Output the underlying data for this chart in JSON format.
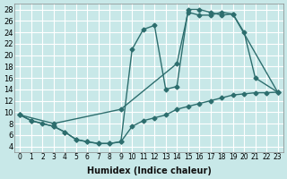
{
  "xlabel": "Humidex (Indice chaleur)",
  "ylabel": "",
  "bg_color": "#c8e8e8",
  "grid_color": "#ffffff",
  "line_color": "#2d6e6e",
  "marker": "D",
  "markersize": 2.5,
  "linewidth": 1.0,
  "xlim": [
    -0.5,
    23.5
  ],
  "ylim": [
    3,
    29
  ],
  "xticks": [
    0,
    1,
    2,
    3,
    4,
    5,
    6,
    7,
    8,
    9,
    10,
    11,
    12,
    13,
    14,
    15,
    16,
    17,
    18,
    19,
    20,
    21,
    22,
    23
  ],
  "yticks": [
    4,
    6,
    8,
    10,
    12,
    14,
    16,
    18,
    20,
    22,
    24,
    26,
    28
  ],
  "line1_x": [
    0,
    1,
    3,
    4,
    5,
    6,
    7,
    8,
    9,
    10,
    11,
    12,
    13,
    14,
    15,
    16,
    17,
    18,
    19,
    23
  ],
  "line1_y": [
    9.5,
    8.5,
    7.5,
    6.5,
    5.2,
    4.8,
    4.5,
    4.5,
    4.8,
    21.0,
    24.5,
    25.2,
    14.0,
    14.5,
    28.0,
    28.0,
    27.5,
    27.0,
    27.2,
    13.5
  ],
  "line2_x": [
    0,
    3,
    9,
    14,
    15,
    16,
    17,
    18,
    19,
    20,
    21,
    23
  ],
  "line2_y": [
    9.5,
    8.0,
    10.5,
    18.5,
    27.5,
    27.0,
    27.0,
    27.5,
    27.2,
    24.0,
    16.0,
    13.5
  ],
  "line3_x": [
    0,
    1,
    2,
    3,
    4,
    5,
    6,
    7,
    8,
    9,
    10,
    11,
    12,
    13,
    14,
    15,
    16,
    17,
    18,
    19,
    20,
    21,
    22,
    23
  ],
  "line3_y": [
    9.5,
    8.5,
    8.0,
    7.5,
    6.5,
    5.2,
    4.8,
    4.5,
    4.5,
    4.8,
    7.5,
    8.5,
    9.0,
    9.5,
    10.5,
    11.0,
    11.5,
    12.0,
    12.5,
    13.0,
    13.2,
    13.4,
    13.4,
    13.5
  ]
}
